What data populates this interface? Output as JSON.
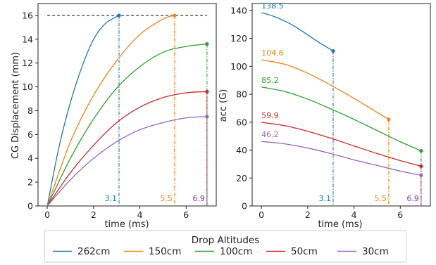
{
  "chart_data": [
    {
      "type": "line",
      "xlabel": "time (ms)",
      "ylabel": "CG Displacement (mm)",
      "xlim": [
        -0.4,
        7.3
      ],
      "ylim": [
        0,
        17
      ],
      "xticks": [
        0,
        2,
        4,
        6
      ],
      "yticks": [
        0,
        2,
        4,
        6,
        8,
        10,
        12,
        14,
        16
      ],
      "reference_line": {
        "y": 16,
        "x_range": [
          0,
          6.9
        ],
        "style": "dashed",
        "color": "#000000"
      },
      "series": [
        {
          "name": "262cm",
          "color": "#1f77b4",
          "end_time": 3.1,
          "end_value": 16.0,
          "end_time_label": "3.1",
          "x": [
            0,
            0.5,
            1.0,
            1.5,
            2.0,
            2.5,
            3.1
          ],
          "y": [
            0,
            4.9,
            8.7,
            11.7,
            14.0,
            15.3,
            16.0
          ]
        },
        {
          "name": "150cm",
          "color": "#ff7f0e",
          "end_time": 5.5,
          "end_value": 16.0,
          "end_time_label": "5.5",
          "x": [
            0,
            1,
            2,
            3,
            4,
            5,
            5.5
          ],
          "y": [
            0,
            5.4,
            9.3,
            12.2,
            14.4,
            15.7,
            16.0
          ]
        },
        {
          "name": "100cm",
          "color": "#2ca02c",
          "end_time": 6.9,
          "end_value": 13.6,
          "end_time_label": "6.9",
          "x": [
            0,
            1,
            2,
            3,
            4,
            5,
            6,
            6.9
          ],
          "y": [
            0,
            4.0,
            7.3,
            9.9,
            11.7,
            12.9,
            13.4,
            13.6
          ]
        },
        {
          "name": "50cm",
          "color": "#d62728",
          "end_time": 6.9,
          "end_value": 9.6,
          "end_time_label": "6.9",
          "x": [
            0,
            1,
            2,
            3,
            4,
            5,
            6,
            6.9
          ],
          "y": [
            0,
            2.8,
            5.1,
            7.0,
            8.3,
            9.1,
            9.5,
            9.6
          ]
        },
        {
          "name": "30cm",
          "color": "#9467bd",
          "end_time": 6.9,
          "end_value": 7.5,
          "end_time_label": "6.9",
          "x": [
            0,
            1,
            2,
            3,
            4,
            5,
            6,
            6.9
          ],
          "y": [
            0,
            2.2,
            4.0,
            5.4,
            6.4,
            7.0,
            7.4,
            7.5
          ]
        }
      ]
    },
    {
      "type": "line",
      "xlabel": "time (ms)",
      "ylabel": "acc (G)",
      "xlim": [
        -0.4,
        7.3
      ],
      "ylim": [
        0,
        145
      ],
      "xticks": [
        0,
        2,
        4,
        6
      ],
      "yticks": [
        0,
        20,
        40,
        60,
        80,
        100,
        120,
        140
      ],
      "series": [
        {
          "name": "262cm",
          "color": "#1f77b4",
          "start_value": 138.5,
          "start_label": "138.5",
          "end_time": 3.1,
          "end_value": 111.0,
          "end_time_label": "3.1",
          "x": [
            0,
            0.5,
            1.0,
            1.5,
            2.0,
            2.5,
            3.1
          ],
          "y": [
            138.5,
            136.0,
            132.5,
            128.0,
            122.5,
            117.0,
            111.0
          ]
        },
        {
          "name": "150cm",
          "color": "#ff7f0e",
          "start_value": 104.6,
          "start_label": "104.6",
          "end_time": 5.5,
          "end_value": 62.0,
          "end_time_label": "5.5",
          "x": [
            0,
            1,
            2,
            3,
            4,
            5,
            5.5
          ],
          "y": [
            104.6,
            101.5,
            95.0,
            86.5,
            77.0,
            67.0,
            62.0
          ]
        },
        {
          "name": "100cm",
          "color": "#2ca02c",
          "start_value": 85.2,
          "start_label": "85.2",
          "end_time": 6.9,
          "end_value": 39.5,
          "end_time_label": "6.9",
          "x": [
            0,
            1,
            2,
            3,
            4,
            5,
            6,
            6.9
          ],
          "y": [
            85.2,
            82.0,
            76.5,
            69.5,
            62.0,
            54.0,
            46.0,
            39.5
          ]
        },
        {
          "name": "50cm",
          "color": "#d62728",
          "start_value": 59.9,
          "start_label": "59.9",
          "end_time": 6.9,
          "end_value": 28.5,
          "end_time_label": "6.9",
          "x": [
            0,
            1,
            2,
            3,
            4,
            5,
            6,
            6.9
          ],
          "y": [
            59.9,
            57.5,
            53.5,
            48.5,
            43.0,
            37.5,
            32.5,
            28.5
          ]
        },
        {
          "name": "30cm",
          "color": "#9467bd",
          "start_value": 46.2,
          "start_label": "46.2",
          "end_time": 6.9,
          "end_value": 22.0,
          "end_time_label": "6.9",
          "x": [
            0,
            1,
            2,
            3,
            4,
            5,
            6,
            6.9
          ],
          "y": [
            46.2,
            44.5,
            41.5,
            37.5,
            33.0,
            29.0,
            25.0,
            22.0
          ]
        }
      ]
    }
  ],
  "legend": {
    "title": "Drop Altitudes",
    "placement": "bottom-center",
    "entries": [
      "262cm",
      "150cm",
      "100cm",
      "50cm",
      "30cm"
    ]
  }
}
